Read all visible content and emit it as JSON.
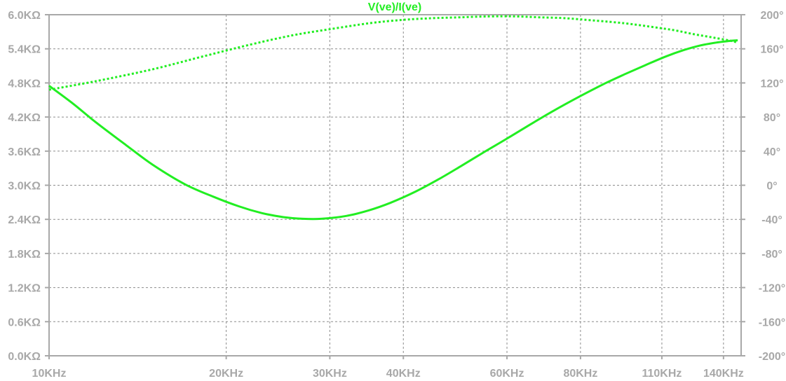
{
  "chart_data": {
    "type": "line",
    "title": "V(ve)/I(ve)",
    "x_scale": "log",
    "xlim": [
      10000,
      150000
    ],
    "x_ticks": [
      {
        "value": 10000,
        "label": "10KHz"
      },
      {
        "value": 20000,
        "label": "20KHz"
      },
      {
        "value": 30000,
        "label": "30KHz"
      },
      {
        "value": 40000,
        "label": "40KHz"
      },
      {
        "value": 60000,
        "label": "60KHz"
      },
      {
        "value": 80000,
        "label": "80KHz"
      },
      {
        "value": 110000,
        "label": "110KHz"
      },
      {
        "value": 140000,
        "label": "140KHz"
      }
    ],
    "y_left": {
      "ylim": [
        0,
        6000
      ],
      "ticks": [
        {
          "value": 0,
          "label": "0.0KΩ"
        },
        {
          "value": 600,
          "label": "0.6KΩ"
        },
        {
          "value": 1200,
          "label": "1.2KΩ"
        },
        {
          "value": 1800,
          "label": "1.8KΩ"
        },
        {
          "value": 2400,
          "label": "2.4KΩ"
        },
        {
          "value": 3000,
          "label": "3.0KΩ"
        },
        {
          "value": 3600,
          "label": "3.6KΩ"
        },
        {
          "value": 4200,
          "label": "4.2KΩ"
        },
        {
          "value": 4800,
          "label": "4.8KΩ"
        },
        {
          "value": 5400,
          "label": "5.4KΩ"
        },
        {
          "value": 6000,
          "label": "6.0KΩ"
        }
      ]
    },
    "y_right": {
      "ylim": [
        -200,
        200
      ],
      "ticks": [
        {
          "value": -200,
          "label": "-200°"
        },
        {
          "value": -160,
          "label": "-160°"
        },
        {
          "value": -120,
          "label": "-120°"
        },
        {
          "value": -80,
          "label": "-80°"
        },
        {
          "value": -40,
          "label": "-40°"
        },
        {
          "value": 0,
          "label": "0°"
        },
        {
          "value": 40,
          "label": "40°"
        },
        {
          "value": 80,
          "label": "80°"
        },
        {
          "value": 120,
          "label": "120°"
        },
        {
          "value": 160,
          "label": "160°"
        },
        {
          "value": 200,
          "label": "200°"
        }
      ]
    },
    "grid": true,
    "series": [
      {
        "axis": "left",
        "style": "solid",
        "x": [
          10000,
          11000,
          12000,
          13500,
          15000,
          17000,
          19000,
          21000,
          23000,
          25000,
          27000,
          29000,
          32000,
          35000,
          38000,
          42000,
          46000,
          50000,
          55000,
          60000,
          66000,
          72000,
          80000,
          88000,
          95000,
          103000,
          112000,
          120000,
          128000,
          136000,
          144000,
          148000
        ],
        "y": [
          4750,
          4430,
          4110,
          3710,
          3360,
          3020,
          2800,
          2630,
          2510,
          2440,
          2410,
          2410,
          2460,
          2560,
          2690,
          2890,
          3110,
          3330,
          3590,
          3820,
          4080,
          4310,
          4570,
          4790,
          4950,
          5110,
          5270,
          5380,
          5460,
          5510,
          5540,
          5550
        ]
      },
      {
        "axis": "right",
        "style": "dotted",
        "x": [
          10000,
          12000,
          15000,
          18000,
          22000,
          26000,
          30000,
          35000,
          40000,
          45000,
          50000,
          56000,
          62000,
          68000,
          75000,
          85000,
          95000,
          105000,
          115000,
          125000,
          135000,
          145000,
          148000
        ],
        "y": [
          112,
          122,
          136,
          150,
          165,
          176,
          183,
          190,
          194,
          196,
          197,
          198,
          198,
          197,
          196,
          193,
          190,
          186,
          182,
          177,
          173,
          169,
          167
        ]
      }
    ]
  },
  "colors": {
    "trace": "#22ee22",
    "grid": "#8c8c8c",
    "axis": "#a8a8a8",
    "labels": "#a8a8a8",
    "background": "#ffffff"
  }
}
